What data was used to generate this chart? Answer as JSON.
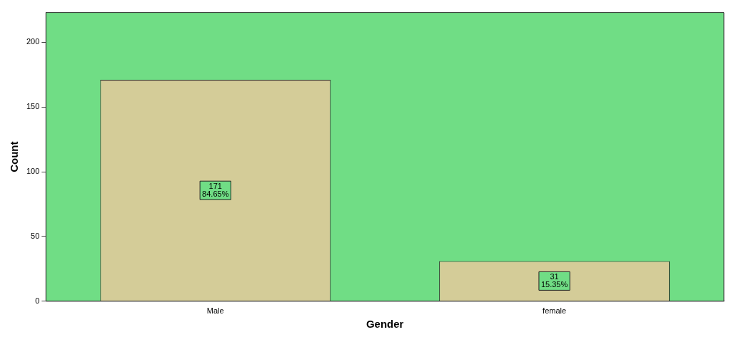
{
  "chart_data": {
    "type": "bar",
    "xlabel": "Gender",
    "ylabel": "Count",
    "categories": [
      "Male",
      "female"
    ],
    "values": [
      171,
      31
    ],
    "color": "#d4cc98",
    "value_labels": [
      "171\n84.65%",
      "31\n15.35%"
    ],
    "ylim": [
      0,
      223
    ],
    "yticks": [
      0,
      50,
      100,
      150,
      200
    ],
    "grid": false,
    "legend": false
  }
}
